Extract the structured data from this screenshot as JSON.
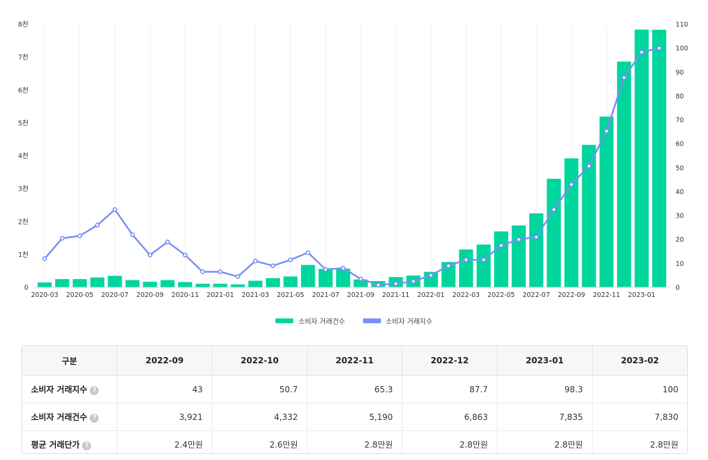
{
  "chart_data": {
    "type": "bar",
    "categories": [
      "2020-03",
      "2020-04",
      "2020-05",
      "2020-06",
      "2020-07",
      "2020-08",
      "2020-09",
      "2020-10",
      "2020-11",
      "2020-12",
      "2021-01",
      "2021-02",
      "2021-03",
      "2021-04",
      "2021-05",
      "2021-06",
      "2021-07",
      "2021-08",
      "2021-09",
      "2021-10",
      "2021-11",
      "2021-12",
      "2022-01",
      "2022-02",
      "2022-03",
      "2022-04",
      "2022-05",
      "2022-06",
      "2022-07",
      "2022-08",
      "2022-09",
      "2022-10",
      "2022-11",
      "2022-12",
      "2023-01",
      "2023-02"
    ],
    "x_tick_labels": [
      "2020-03",
      "2020-05",
      "2020-07",
      "2020-09",
      "2020-11",
      "2021-01",
      "2021-03",
      "2021-05",
      "2021-07",
      "2021-09",
      "2021-11",
      "2022-01",
      "2022-03",
      "2022-05",
      "2022-07",
      "2022-09",
      "2022-11",
      "2023-01"
    ],
    "series": [
      {
        "name": "소비자 거래건수",
        "type": "bar",
        "axis": "left",
        "color": "#00d59e",
        "values": [
          150,
          250,
          250,
          300,
          350,
          220,
          170,
          220,
          160,
          110,
          110,
          90,
          200,
          280,
          330,
          680,
          560,
          570,
          240,
          190,
          310,
          360,
          470,
          770,
          1150,
          1300,
          1700,
          1880,
          2250,
          3300,
          3921,
          4332,
          5190,
          6863,
          7835,
          7830
        ]
      },
      {
        "name": "소비자 거래지수",
        "type": "line",
        "axis": "right",
        "color": "#7b8ff6",
        "values": [
          12,
          20.5,
          21.5,
          26,
          32.5,
          22,
          13.5,
          19,
          13.5,
          6.5,
          6.5,
          4.5,
          11,
          9,
          11.5,
          14.5,
          7.5,
          8,
          3.5,
          1,
          1.5,
          2.5,
          5,
          9,
          11.5,
          11.5,
          17.5,
          20,
          21,
          32.5,
          43,
          50.7,
          65.3,
          87.7,
          98.3,
          100
        ]
      }
    ],
    "y_left": {
      "ylim": [
        0,
        8000
      ],
      "tick_values": [
        0,
        1000,
        2000,
        3000,
        4000,
        5000,
        6000,
        7000,
        8000
      ],
      "tick_labels": [
        "0",
        "1천",
        "2천",
        "3천",
        "4천",
        "5천",
        "6천",
        "7천",
        "8천"
      ]
    },
    "y_right": {
      "ylim": [
        0,
        110
      ],
      "tick_values": [
        0,
        10,
        20,
        30,
        40,
        50,
        60,
        70,
        80,
        90,
        100,
        110
      ],
      "tick_labels": [
        "0",
        "10",
        "20",
        "30",
        "40",
        "50",
        "60",
        "70",
        "80",
        "90",
        "100",
        "110"
      ]
    },
    "grid": "vertical",
    "legend_position": "bottom-center"
  },
  "legend": {
    "bar_label": "소비자 거래건수",
    "line_label": "소비자 거래지수"
  },
  "table": {
    "header_first": "구분",
    "headers": [
      "2022-09",
      "2022-10",
      "2022-11",
      "2022-12",
      "2023-01",
      "2023-02"
    ],
    "help_glyph": "?",
    "rows": [
      {
        "label": "소비자 거래지수",
        "cells": [
          "43",
          "50.7",
          "65.3",
          "87.7",
          "98.3",
          "100"
        ]
      },
      {
        "label": "소비자 거래건수",
        "cells": [
          "3,921",
          "4,332",
          "5,190",
          "6,863",
          "7,835",
          "7,830"
        ]
      },
      {
        "label": "평균 거래단가",
        "cells": [
          "2.4만원",
          "2.6만원",
          "2.8만원",
          "2.8만원",
          "2.8만원",
          "2.8만원"
        ]
      }
    ]
  }
}
